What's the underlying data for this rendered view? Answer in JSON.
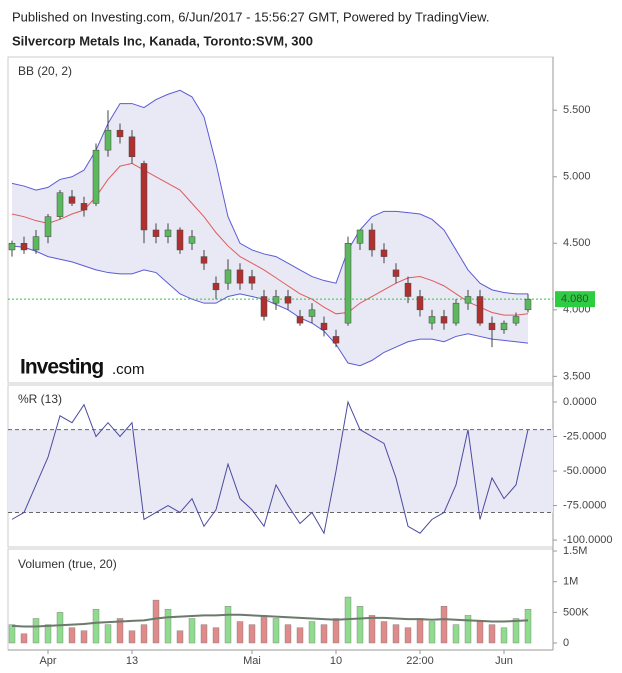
{
  "header": {
    "published": "Published on Investing.com, 6/Jun/2017 - 15:56:27 GMT, Powered by TradingView.",
    "symbol": "Silvercorp Metals Inc, Kanada, Toronto:SVM, 300"
  },
  "logo": {
    "brand": "Investing",
    "suffix": ".com"
  },
  "xticks": [
    {
      "value": 3,
      "label": "Apr"
    },
    {
      "value": 10,
      "label": "13"
    },
    {
      "value": 20,
      "label": "Mai"
    },
    {
      "value": 27,
      "label": "10"
    },
    {
      "value": 34,
      "label": "22:00"
    },
    {
      "value": 41,
      "label": "Jun"
    }
  ],
  "chart_data": [
    {
      "type": "candlestick",
      "label": "BB (20, 2)",
      "up_color": "#5cb85c",
      "down_color": "#b03030",
      "band_color": "#5b5bd6",
      "band_fill": "#e9e9f6",
      "mid_color": "#e05a5a",
      "candles": [
        {
          "o": 4.45,
          "h": 4.52,
          "l": 4.4,
          "c": 4.5
        },
        {
          "o": 4.5,
          "h": 4.55,
          "l": 4.42,
          "c": 4.45
        },
        {
          "o": 4.45,
          "h": 4.6,
          "l": 4.42,
          "c": 4.55
        },
        {
          "o": 4.55,
          "h": 4.72,
          "l": 4.5,
          "c": 4.7
        },
        {
          "o": 4.7,
          "h": 4.9,
          "l": 4.68,
          "c": 4.88
        },
        {
          "o": 4.85,
          "h": 4.9,
          "l": 4.78,
          "c": 4.8
        },
        {
          "o": 4.8,
          "h": 4.85,
          "l": 4.7,
          "c": 4.75
        },
        {
          "o": 4.8,
          "h": 5.25,
          "l": 4.78,
          "c": 5.2
        },
        {
          "o": 5.2,
          "h": 5.5,
          "l": 5.15,
          "c": 5.35
        },
        {
          "o": 5.35,
          "h": 5.4,
          "l": 5.25,
          "c": 5.3
        },
        {
          "o": 5.3,
          "h": 5.35,
          "l": 5.1,
          "c": 5.15
        },
        {
          "o": 5.1,
          "h": 5.12,
          "l": 4.5,
          "c": 4.6
        },
        {
          "o": 4.6,
          "h": 4.65,
          "l": 4.5,
          "c": 4.55
        },
        {
          "o": 4.55,
          "h": 4.65,
          "l": 4.5,
          "c": 4.6
        },
        {
          "o": 4.6,
          "h": 4.62,
          "l": 4.42,
          "c": 4.45
        },
        {
          "o": 4.5,
          "h": 4.6,
          "l": 4.45,
          "c": 4.55
        },
        {
          "o": 4.4,
          "h": 4.45,
          "l": 4.3,
          "c": 4.35
        },
        {
          "o": 4.2,
          "h": 4.25,
          "l": 4.08,
          "c": 4.15
        },
        {
          "o": 4.2,
          "h": 4.38,
          "l": 4.15,
          "c": 4.3
        },
        {
          "o": 4.3,
          "h": 4.35,
          "l": 4.15,
          "c": 4.2
        },
        {
          "o": 4.25,
          "h": 4.3,
          "l": 4.15,
          "c": 4.2
        },
        {
          "o": 4.1,
          "h": 4.15,
          "l": 3.92,
          "c": 3.95
        },
        {
          "o": 4.05,
          "h": 4.15,
          "l": 4.0,
          "c": 4.1
        },
        {
          "o": 4.1,
          "h": 4.15,
          "l": 4.0,
          "c": 4.05
        },
        {
          "o": 3.95,
          "h": 4.0,
          "l": 3.88,
          "c": 3.9
        },
        {
          "o": 3.95,
          "h": 4.05,
          "l": 3.9,
          "c": 4.0
        },
        {
          "o": 3.9,
          "h": 3.95,
          "l": 3.8,
          "c": 3.85
        },
        {
          "o": 3.8,
          "h": 3.85,
          "l": 3.72,
          "c": 3.75
        },
        {
          "o": 3.9,
          "h": 4.55,
          "l": 3.88,
          "c": 4.5
        },
        {
          "o": 4.5,
          "h": 4.6,
          "l": 4.45,
          "c": 4.6
        },
        {
          "o": 4.6,
          "h": 4.65,
          "l": 4.4,
          "c": 4.45
        },
        {
          "o": 4.45,
          "h": 4.5,
          "l": 4.35,
          "c": 4.4
        },
        {
          "o": 4.3,
          "h": 4.35,
          "l": 4.2,
          "c": 4.25
        },
        {
          "o": 4.2,
          "h": 4.25,
          "l": 4.05,
          "c": 4.1
        },
        {
          "o": 4.1,
          "h": 4.15,
          "l": 3.95,
          "c": 4.0
        },
        {
          "o": 3.9,
          "h": 4.0,
          "l": 3.85,
          "c": 3.95
        },
        {
          "o": 3.95,
          "h": 4.0,
          "l": 3.85,
          "c": 3.9
        },
        {
          "o": 3.9,
          "h": 4.08,
          "l": 3.88,
          "c": 4.05
        },
        {
          "o": 4.05,
          "h": 4.15,
          "l": 4.0,
          "c": 4.1
        },
        {
          "o": 4.1,
          "h": 4.15,
          "l": 3.88,
          "c": 3.9
        },
        {
          "o": 3.9,
          "h": 3.95,
          "l": 3.72,
          "c": 3.85
        },
        {
          "o": 3.85,
          "h": 3.92,
          "l": 3.82,
          "c": 3.9
        },
        {
          "o": 3.9,
          "h": 3.98,
          "l": 3.88,
          "c": 3.95
        },
        {
          "o": 4.0,
          "h": 4.12,
          "l": 3.98,
          "c": 4.08
        }
      ],
      "bb": {
        "upper": [
          4.95,
          4.93,
          4.9,
          4.92,
          4.98,
          5.0,
          5.05,
          5.2,
          5.4,
          5.55,
          5.55,
          5.52,
          5.58,
          5.62,
          5.65,
          5.6,
          5.45,
          5.1,
          4.7,
          4.5,
          4.45,
          4.42,
          4.4,
          4.35,
          4.3,
          4.25,
          4.22,
          4.2,
          4.45,
          4.6,
          4.7,
          4.74,
          4.74,
          4.73,
          4.72,
          4.68,
          4.6,
          4.45,
          4.3,
          4.2,
          4.15,
          4.13,
          4.12,
          4.12
        ],
        "middle": [
          4.72,
          4.7,
          4.67,
          4.65,
          4.68,
          4.72,
          4.75,
          4.85,
          4.98,
          5.08,
          5.1,
          5.05,
          5.0,
          4.95,
          4.9,
          4.8,
          4.7,
          4.58,
          4.48,
          4.4,
          4.35,
          4.3,
          4.24,
          4.18,
          4.12,
          4.08,
          4.02,
          3.97,
          3.98,
          4.05,
          4.1,
          4.15,
          4.2,
          4.24,
          4.25,
          4.22,
          4.18,
          4.12,
          4.06,
          4.02,
          3.98,
          3.96,
          3.96,
          3.97
        ],
        "lower": [
          4.48,
          4.47,
          4.44,
          4.4,
          4.38,
          4.36,
          4.33,
          4.3,
          4.28,
          4.27,
          4.27,
          4.3,
          4.28,
          4.2,
          4.12,
          4.08,
          4.05,
          4.05,
          4.1,
          4.12,
          4.1,
          4.08,
          4.04,
          4.0,
          3.94,
          3.9,
          3.84,
          3.74,
          3.6,
          3.58,
          3.62,
          3.68,
          3.72,
          3.76,
          3.78,
          3.78,
          3.76,
          3.8,
          3.82,
          3.8,
          3.78,
          3.77,
          3.76,
          3.75
        ]
      },
      "last_price": {
        "value": 4.08,
        "label": "4.080",
        "color": "#2ecc40"
      },
      "ylim": [
        3.45,
        5.9
      ],
      "yticks": [
        {
          "value": 3.5,
          "label": "3.500"
        },
        {
          "value": 4.0,
          "label": "4.000"
        },
        {
          "value": 4.5,
          "label": "4.500"
        },
        {
          "value": 5.0,
          "label": "5.000"
        },
        {
          "value": 5.5,
          "label": "5.500"
        }
      ]
    },
    {
      "type": "line",
      "label": "%R (13)",
      "color": "#4b4ba0",
      "band_fill": "#e9e9f6",
      "values": [
        -85,
        -80,
        -60,
        -40,
        -10,
        -15,
        -2,
        -25,
        -15,
        -25,
        -15,
        -85,
        -80,
        -75,
        -80,
        -70,
        -90,
        -78,
        -45,
        -70,
        -78,
        -90,
        -60,
        -75,
        -88,
        -80,
        -95,
        -50,
        0,
        -20,
        -25,
        -30,
        -55,
        -90,
        -95,
        -85,
        -80,
        -60,
        -20,
        -85,
        -55,
        -70,
        -60,
        -20
      ],
      "levels": [
        -20,
        -80
      ],
      "ylim": [
        -105,
        12.3
      ],
      "yticks": [
        {
          "value": 0,
          "label": "0.0000"
        },
        {
          "value": -25,
          "label": "-25.0000"
        },
        {
          "value": -50,
          "label": "-50.0000"
        },
        {
          "value": -75,
          "label": "-75.0000"
        },
        {
          "value": -100,
          "label": "-100.0000"
        }
      ]
    },
    {
      "type": "bar",
      "label": "Volumen (true, 20)",
      "up_color": "#8fdc8f",
      "down_color": "#e08a8a",
      "ma_color": "#6b7a6b",
      "values": [
        300000,
        150000,
        400000,
        300000,
        500000,
        250000,
        200000,
        550000,
        300000,
        400000,
        200000,
        300000,
        700000,
        550000,
        200000,
        400000,
        300000,
        250000,
        600000,
        350000,
        300000,
        450000,
        400000,
        300000,
        250000,
        350000,
        300000,
        400000,
        750000,
        600000,
        450000,
        350000,
        300000,
        250000,
        400000,
        350000,
        600000,
        300000,
        450000,
        350000,
        300000,
        250000,
        400000,
        550000
      ],
      "ma": [
        280000,
        270000,
        270000,
        280000,
        290000,
        300000,
        310000,
        330000,
        340000,
        350000,
        360000,
        370000,
        400000,
        420000,
        430000,
        440000,
        450000,
        450000,
        460000,
        460000,
        450000,
        440000,
        430000,
        420000,
        410000,
        400000,
        390000,
        380000,
        390000,
        400000,
        410000,
        410000,
        400000,
        390000,
        390000,
        380000,
        390000,
        380000,
        370000,
        360000,
        350000,
        350000,
        360000,
        370000
      ],
      "ylim": [
        -114000,
        1533000
      ],
      "yticks": [
        0,
        {
          "value": 500000,
          "label": "500K"
        },
        {
          "value": 1000000,
          "label": "1M"
        },
        {
          "value": 1500000,
          "label": "1.5M"
        }
      ]
    }
  ]
}
